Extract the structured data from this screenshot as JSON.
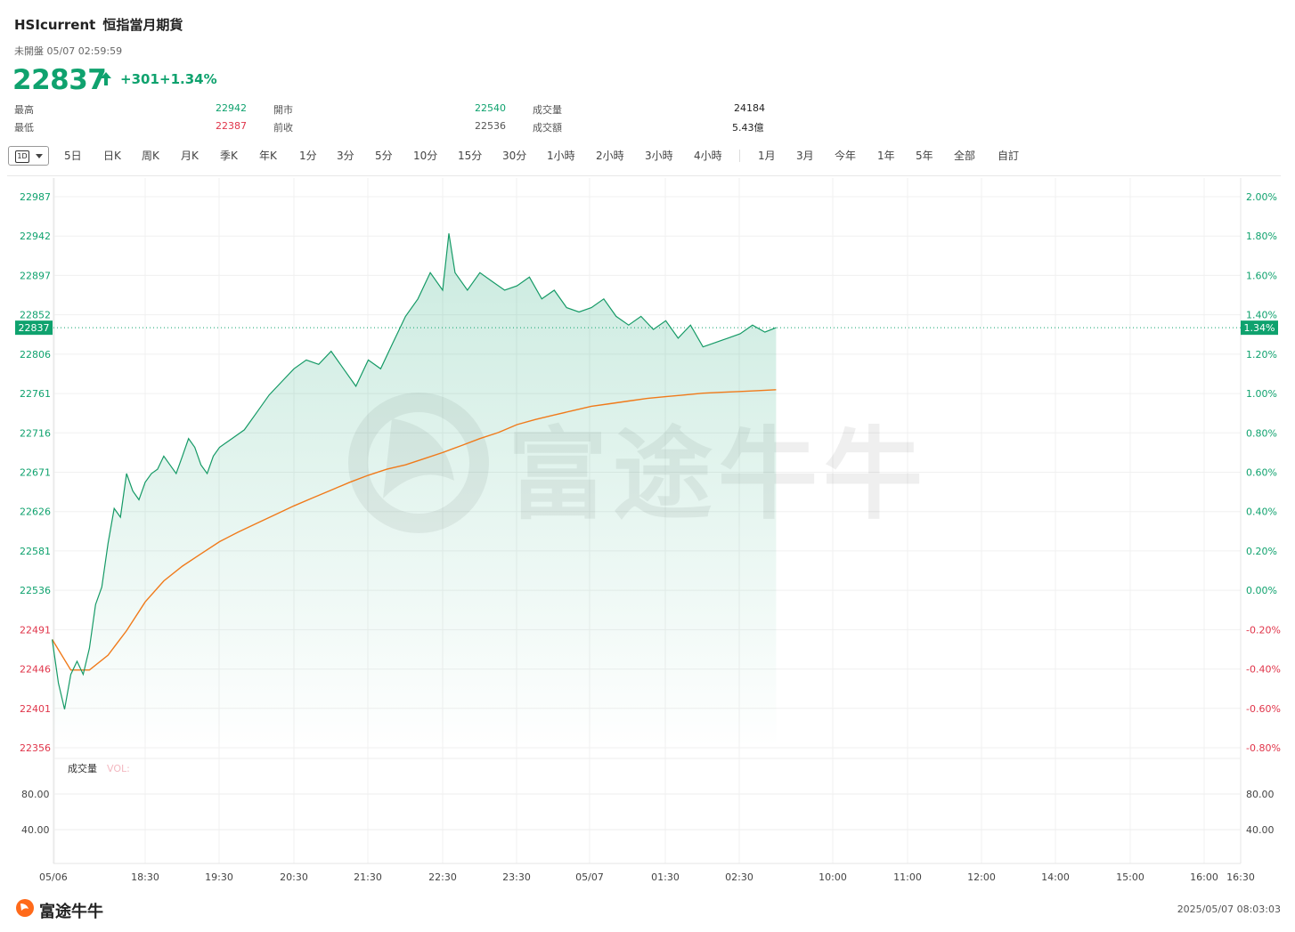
{
  "header": {
    "symbol": "HSIcurrent",
    "name": "恒指當月期貨",
    "status": "未開盤 05/07 02:59:59",
    "price": "22837",
    "change": "+301",
    "change_pct": "+1.34%",
    "direction": "up"
  },
  "stats": {
    "high_label": "最高",
    "high": "22942",
    "low_label": "最低",
    "low": "22387",
    "open_label": "開市",
    "open": "22540",
    "prev_close_label": "前收",
    "prev_close": "22536",
    "volume_label": "成交量",
    "volume": "24184",
    "turnover_label": "成交額",
    "turnover": "5.43億"
  },
  "toolbar": {
    "selected": "1D",
    "items": [
      "5日",
      "日K",
      "周K",
      "月K",
      "季K",
      "年K",
      "1分",
      "3分",
      "5分",
      "10分",
      "15分",
      "30分",
      "1小時",
      "2小時",
      "3小時",
      "4小時",
      "1月",
      "3月",
      "今年",
      "1年",
      "5年",
      "全部",
      "自訂"
    ]
  },
  "colors": {
    "up": "#0fa26e",
    "down": "#e0354a",
    "avg_line": "#f07a1a",
    "price_line": "#159a66"
  },
  "chart_data": {
    "type": "line",
    "xlabel": "",
    "ylabel": "",
    "x_ticks": [
      "05/06",
      "18:30",
      "19:30",
      "20:30",
      "21:30",
      "22:30",
      "23:30",
      "05/07",
      "01:30",
      "02:30",
      "10:00",
      "11:00",
      "12:00",
      "14:00",
      "15:00",
      "16:00",
      "16:30"
    ],
    "y_ticks_left": [
      "22987",
      "22942",
      "22897",
      "22852",
      "22806",
      "22761",
      "22716",
      "22671",
      "22626",
      "22581",
      "22536",
      "22491",
      "22446",
      "22401",
      "22356"
    ],
    "y_ticks_right": [
      "2.00%",
      "1.80%",
      "1.60%",
      "1.40%",
      "1.20%",
      "1.00%",
      "0.80%",
      "0.60%",
      "0.40%",
      "0.20%",
      "0.00%",
      "-0.20%",
      "-0.40%",
      "-0.60%",
      "-0.80%"
    ],
    "ylim": [
      22356,
      22987
    ],
    "prev_close": 22536,
    "last_price_label": "22837",
    "last_pct_label": "1.34%",
    "series": [
      {
        "name": "price",
        "x": [
          "17:15",
          "17:20",
          "17:25",
          "17:30",
          "17:35",
          "17:40",
          "17:45",
          "17:50",
          "17:55",
          "18:00",
          "18:05",
          "18:10",
          "18:15",
          "18:20",
          "18:25",
          "18:30",
          "18:35",
          "18:40",
          "18:45",
          "18:50",
          "18:55",
          "19:00",
          "19:05",
          "19:10",
          "19:15",
          "19:20",
          "19:25",
          "19:30",
          "19:40",
          "19:50",
          "20:00",
          "20:10",
          "20:20",
          "20:30",
          "20:40",
          "20:50",
          "21:00",
          "21:10",
          "21:20",
          "21:30",
          "21:40",
          "21:50",
          "22:00",
          "22:10",
          "22:20",
          "22:30",
          "22:35",
          "22:40",
          "22:50",
          "23:00",
          "23:10",
          "23:20",
          "23:30",
          "23:40",
          "23:50",
          "00:00",
          "00:10",
          "00:20",
          "00:30",
          "00:40",
          "00:50",
          "01:00",
          "01:10",
          "01:20",
          "01:30",
          "01:40",
          "01:50",
          "02:00",
          "02:10",
          "02:20",
          "02:30",
          "02:40",
          "02:50",
          "02:59"
        ],
        "values": [
          22480,
          22430,
          22400,
          22440,
          22455,
          22440,
          22470,
          22520,
          22540,
          22590,
          22630,
          22620,
          22670,
          22650,
          22640,
          22660,
          22670,
          22675,
          22690,
          22680,
          22670,
          22690,
          22710,
          22700,
          22680,
          22670,
          22690,
          22700,
          22710,
          22720,
          22740,
          22760,
          22775,
          22790,
          22800,
          22795,
          22810,
          22790,
          22770,
          22800,
          22790,
          22820,
          22850,
          22870,
          22900,
          22880,
          22945,
          22900,
          22880,
          22900,
          22890,
          22880,
          22885,
          22895,
          22870,
          22880,
          22860,
          22855,
          22860,
          22870,
          22850,
          22840,
          22850,
          22835,
          22845,
          22825,
          22840,
          22815,
          22820,
          22825,
          22830,
          22840,
          22832,
          22837
        ]
      },
      {
        "name": "average",
        "x": [
          "17:15",
          "17:30",
          "17:45",
          "18:00",
          "18:15",
          "18:30",
          "18:45",
          "19:00",
          "19:15",
          "19:30",
          "19:45",
          "20:00",
          "20:15",
          "20:30",
          "20:45",
          "21:00",
          "21:15",
          "21:30",
          "21:45",
          "22:00",
          "22:15",
          "22:30",
          "22:45",
          "23:00",
          "23:15",
          "23:30",
          "23:45",
          "00:00",
          "00:15",
          "00:30",
          "00:45",
          "01:00",
          "01:15",
          "01:30",
          "01:45",
          "02:00",
          "02:15",
          "02:30",
          "02:45",
          "02:59"
        ],
        "values": [
          22480,
          22445,
          22445,
          22462,
          22490,
          22523,
          22547,
          22564,
          22578,
          22592,
          22603,
          22613,
          22623,
          22633,
          22642,
          22651,
          22660,
          22668,
          22675,
          22680,
          22687,
          22694,
          22702,
          22710,
          22717,
          22726,
          22732,
          22737,
          22742,
          22747,
          22750,
          22753,
          22756,
          22758,
          22760,
          22762,
          22763,
          22764,
          22765,
          22766
        ]
      }
    ],
    "volume_panel": {
      "title": "成交量",
      "legend": "VOL:",
      "y_ticks": [
        "80.00",
        "40.00"
      ]
    }
  },
  "footer": {
    "brand": "富途牛牛",
    "timestamp": "2025/05/07 08:03:03"
  }
}
